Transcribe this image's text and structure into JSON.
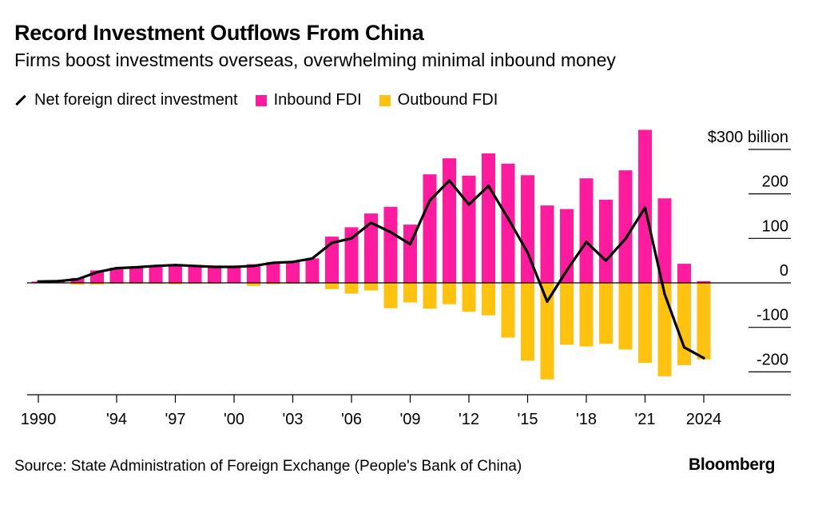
{
  "title": "Record Investment Outflows From China",
  "subtitle": "Firms boost investments overseas, overwhelming minimal inbound money",
  "source": "Source: State Administration of Foreign Exchange (People's Bank of China)",
  "brand": "Bloomberg",
  "colors": {
    "inbound": "#ff1b9d",
    "outbound": "#ffc20e",
    "net": "#000000",
    "axis": "#000000"
  },
  "chart_data": {
    "type": "bar",
    "x": [
      1990,
      1991,
      1992,
      1993,
      1994,
      1995,
      1996,
      1997,
      1998,
      1999,
      2000,
      2001,
      2002,
      2003,
      2004,
      2005,
      2006,
      2007,
      2008,
      2009,
      2010,
      2011,
      2012,
      2013,
      2014,
      2015,
      2016,
      2017,
      2018,
      2019,
      2020,
      2021,
      2022,
      2023,
      2024
    ],
    "x_tick_labels": [
      "1990",
      "'94",
      "'97",
      "'00",
      "'03",
      "'06",
      "'09",
      "'12",
      "'15",
      "'18",
      "'21",
      "2024"
    ],
    "x_tick_years": [
      1990,
      1994,
      1997,
      2000,
      2003,
      2006,
      2009,
      2012,
      2015,
      2018,
      2021,
      2024
    ],
    "series": [
      {
        "name": "Inbound FDI",
        "kind": "bar",
        "values": [
          3,
          4,
          11,
          28,
          34,
          35,
          38,
          42,
          38,
          38,
          38,
          42,
          47,
          47,
          55,
          104,
          125,
          156,
          171,
          131,
          244,
          280,
          241,
          291,
          268,
          242,
          174,
          166,
          235,
          187,
          253,
          344,
          190,
          43,
          4
        ]
      },
      {
        "name": "Outbound FDI",
        "kind": "bar",
        "values": [
          0,
          0,
          -4,
          -4,
          -2,
          -2,
          -2,
          -3,
          -2,
          -2,
          -1,
          -7,
          -3,
          -2,
          -2,
          -14,
          -24,
          -17,
          -57,
          -44,
          -58,
          -48,
          -65,
          -73,
          -123,
          -175,
          -217,
          -139,
          -143,
          -137,
          -150,
          -180,
          -210,
          -185,
          -172
        ]
      },
      {
        "name": "Net foreign direct investment",
        "kind": "line",
        "values": [
          3,
          4,
          8,
          24,
          33,
          35,
          38,
          40,
          38,
          36,
          36,
          38,
          45,
          47,
          55,
          90,
          100,
          135,
          114,
          87,
          185,
          230,
          176,
          218,
          145,
          68,
          -42,
          28,
          92,
          50,
          99,
          169,
          -25,
          -145,
          -169
        ]
      }
    ],
    "ylabel": "",
    "y_tick_values": [
      300,
      200,
      100,
      0,
      -100,
      -200
    ],
    "y_tick_labels": [
      "$300 billion",
      "200",
      "100",
      "0",
      "-100",
      "-200"
    ],
    "ylim": [
      -240,
      345
    ],
    "grid": false,
    "legend_position": "top-left"
  }
}
